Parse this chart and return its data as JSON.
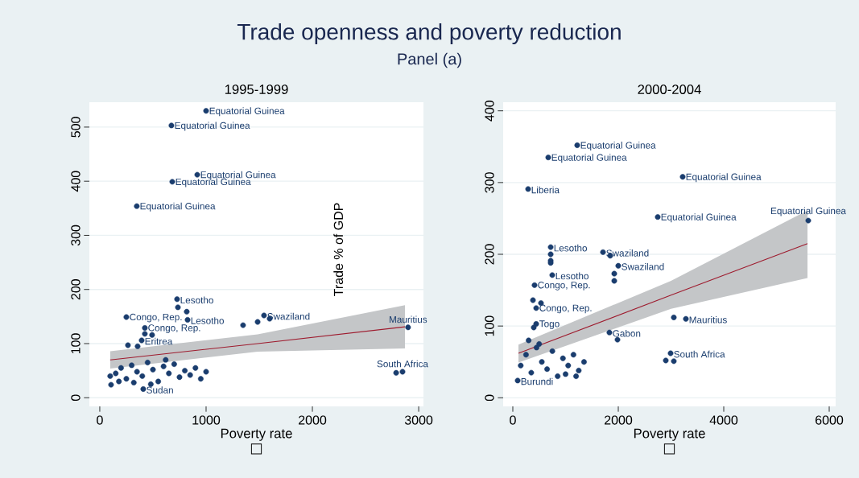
{
  "chart_data": [
    {
      "type": "scatter",
      "title": "1995-1999",
      "xlabel": "Poverty rate",
      "ylabel": "Trade % of GDP",
      "xlim": [
        -98,
        3045
      ],
      "ylim": [
        -16,
        546
      ],
      "xticks": [
        0,
        1000,
        2000,
        3000
      ],
      "yticks": [
        0,
        100,
        200,
        300,
        400,
        500
      ],
      "grid": "y",
      "series": [
        {
          "marker": "circle",
          "color": "#1a3d6e",
          "x": [
            1000,
            674,
            917,
            682,
            348,
            727,
            735,
            818,
            826,
            250,
            424,
            1545,
            1598,
            1485,
            1348,
            424,
            394,
            492,
            265,
            356,
            2900,
            2848,
            2788,
            98,
            106,
            409,
            150,
            200,
            250,
            300,
            350,
            400,
            450,
            500,
            550,
            600,
            650,
            700,
            750,
            800,
            850,
            900,
            950,
            180,
            320,
            480,
            620,
            1000
          ],
          "values": [
            530,
            503,
            412,
            399,
            354,
            182,
            167,
            159,
            144,
            149,
            129,
            152,
            146,
            140,
            134,
            118,
            106,
            116,
            97,
            95,
            130,
            48,
            46,
            40,
            24,
            16,
            45,
            55,
            35,
            60,
            48,
            40,
            65,
            52,
            30,
            58,
            45,
            62,
            38,
            50,
            42,
            55,
            35,
            30,
            28,
            25,
            70,
            48
          ]
        },
        {
          "type": "line",
          "marker": "none",
          "color": "#9e1b2e",
          "x": [
            98,
            1485,
            2871
          ],
          "values": [
            70,
            100,
            131
          ],
          "lower": [
            54,
            85,
            91
          ],
          "upper": [
            86,
            117,
            171
          ]
        }
      ],
      "annotations": [
        "Trade openness and poverty reduction",
        "Panel (a)",
        "□",
        {
          "text": "Equatorial Guinea",
          "x": 1000,
          "y": 530
        },
        {
          "text": "Equatorial Guinea",
          "x": 674,
          "y": 503
        },
        {
          "text": "Equatorial Guinea",
          "x": 917,
          "y": 412
        },
        {
          "text": "Equatorial Guinea",
          "x": 682,
          "y": 399
        },
        {
          "text": "Equatorial Guinea",
          "x": 348,
          "y": 354
        },
        {
          "text": "Lesotho",
          "x": 727,
          "y": 182
        },
        {
          "text": "Lesotho",
          "x": 826,
          "y": 144
        },
        {
          "text": "Congo, Rep.",
          "x": 250,
          "y": 149
        },
        {
          "text": "Congo, Rep.",
          "x": 424,
          "y": 129
        },
        {
          "text": "Swaziland",
          "x": 1545,
          "y": 152
        },
        {
          "text": "Eritrea",
          "x": 394,
          "y": 106
        },
        {
          "text": "Mauritius",
          "x": 2900,
          "y": 130
        },
        {
          "text": "South Africa",
          "x": 2848,
          "y": 48
        },
        {
          "text": "Sudan",
          "x": 409,
          "y": 16
        }
      ]
    },
    {
      "type": "scatter",
      "title": "2000-2004",
      "xlabel": "Poverty rate",
      "xlim": [
        -183,
        6122
      ],
      "ylim": [
        -12,
        412
      ],
      "xticks": [
        0,
        2000,
        4000,
        6000
      ],
      "yticks": [
        0,
        100,
        200,
        300,
        400
      ],
      "grid": "y",
      "series": [
        {
          "marker": "circle",
          "color": "#1a3d6e",
          "x": [
            1221,
            672,
            3221,
            290,
            2748,
            5603,
            718,
            718,
            718,
            718,
            748,
            1710,
            1847,
            2000,
            1924,
            1924,
            412,
            382,
            534,
            443,
            3053,
            3282,
            443,
            397,
            1832,
            1985,
            2992,
            2901,
            3053,
            92,
            150,
            250,
            350,
            450,
            550,
            650,
            750,
            850,
            950,
            1050,
            1150,
            1250,
            1350,
            1000,
            1200,
            300,
            500
          ],
          "values": [
            352,
            335,
            308,
            291,
            252,
            247,
            210,
            200,
            191,
            188,
            171,
            203,
            198,
            184,
            173,
            163,
            157,
            136,
            132,
            125,
            112,
            110,
            103,
            98,
            91,
            81,
            62,
            52,
            51,
            24,
            45,
            60,
            35,
            70,
            50,
            40,
            65,
            30,
            55,
            45,
            60,
            38,
            50,
            33,
            30,
            80,
            75
          ]
        },
        {
          "type": "line",
          "marker": "none",
          "color": "#9e1b2e",
          "x": [
            107,
            3000,
            5588
          ],
          "values": [
            62,
            143,
            215
          ],
          "lower": [
            49,
            124,
            167
          ],
          "upper": [
            74,
            163,
            261
          ]
        }
      ],
      "annotations": [
        "□",
        {
          "text": "Equatorial Guinea",
          "x": 1221,
          "y": 352
        },
        {
          "text": "Equatorial Guinea",
          "x": 672,
          "y": 335
        },
        {
          "text": "Equatorial Guinea",
          "x": 3221,
          "y": 308
        },
        {
          "text": "Liberia",
          "x": 290,
          "y": 291
        },
        {
          "text": "Equatorial Guinea",
          "x": 2748,
          "y": 252
        },
        {
          "text": "Equatorial Guinea",
          "x": 5603,
          "y": 247
        },
        {
          "text": "Lesotho",
          "x": 718,
          "y": 210
        },
        {
          "text": "Lesotho",
          "x": 748,
          "y": 171
        },
        {
          "text": "Swaziland",
          "x": 1710,
          "y": 203
        },
        {
          "text": "Swaziland",
          "x": 2000,
          "y": 184
        },
        {
          "text": "Congo, Rep.",
          "x": 412,
          "y": 157
        },
        {
          "text": "Congo, Rep.",
          "x": 443,
          "y": 125
        },
        {
          "text": "Mauritius",
          "x": 3282,
          "y": 110
        },
        {
          "text": "Togo",
          "x": 443,
          "y": 103
        },
        {
          "text": "Gabon",
          "x": 1832,
          "y": 91
        },
        {
          "text": "South Africa",
          "x": 2992,
          "y": 62
        },
        {
          "text": "Burundi",
          "x": 92,
          "y": 24
        }
      ]
    }
  ]
}
